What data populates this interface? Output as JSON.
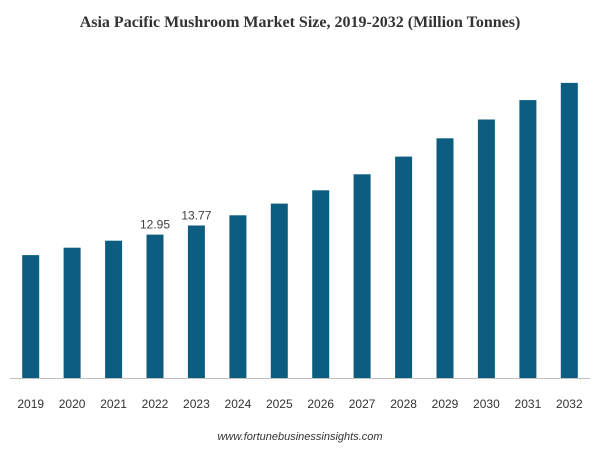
{
  "chart_data": {
    "type": "bar",
    "title": "Asia Pacific Mushroom Market Size, 2019-2032 (Million Tonnes)",
    "xlabel": "",
    "ylabel": "",
    "categories": [
      "2019",
      "2020",
      "2021",
      "2022",
      "2023",
      "2024",
      "2025",
      "2026",
      "2027",
      "2028",
      "2029",
      "2030",
      "2031",
      "2032"
    ],
    "values": [
      11.1,
      11.77,
      12.4,
      12.95,
      13.77,
      14.7,
      15.75,
      16.95,
      18.4,
      20.0,
      21.65,
      23.35,
      25.1,
      26.65
    ],
    "data_labels": [
      null,
      null,
      null,
      "12.95",
      "13.77",
      null,
      null,
      null,
      null,
      null,
      null,
      null,
      null,
      null
    ],
    "ylim": [
      0,
      28
    ],
    "grid": false,
    "legend": "none",
    "bar_color": "#0c5d80",
    "axis_color": "#bfbfbf"
  },
  "source": "www.fortunebusinessinsights.com"
}
